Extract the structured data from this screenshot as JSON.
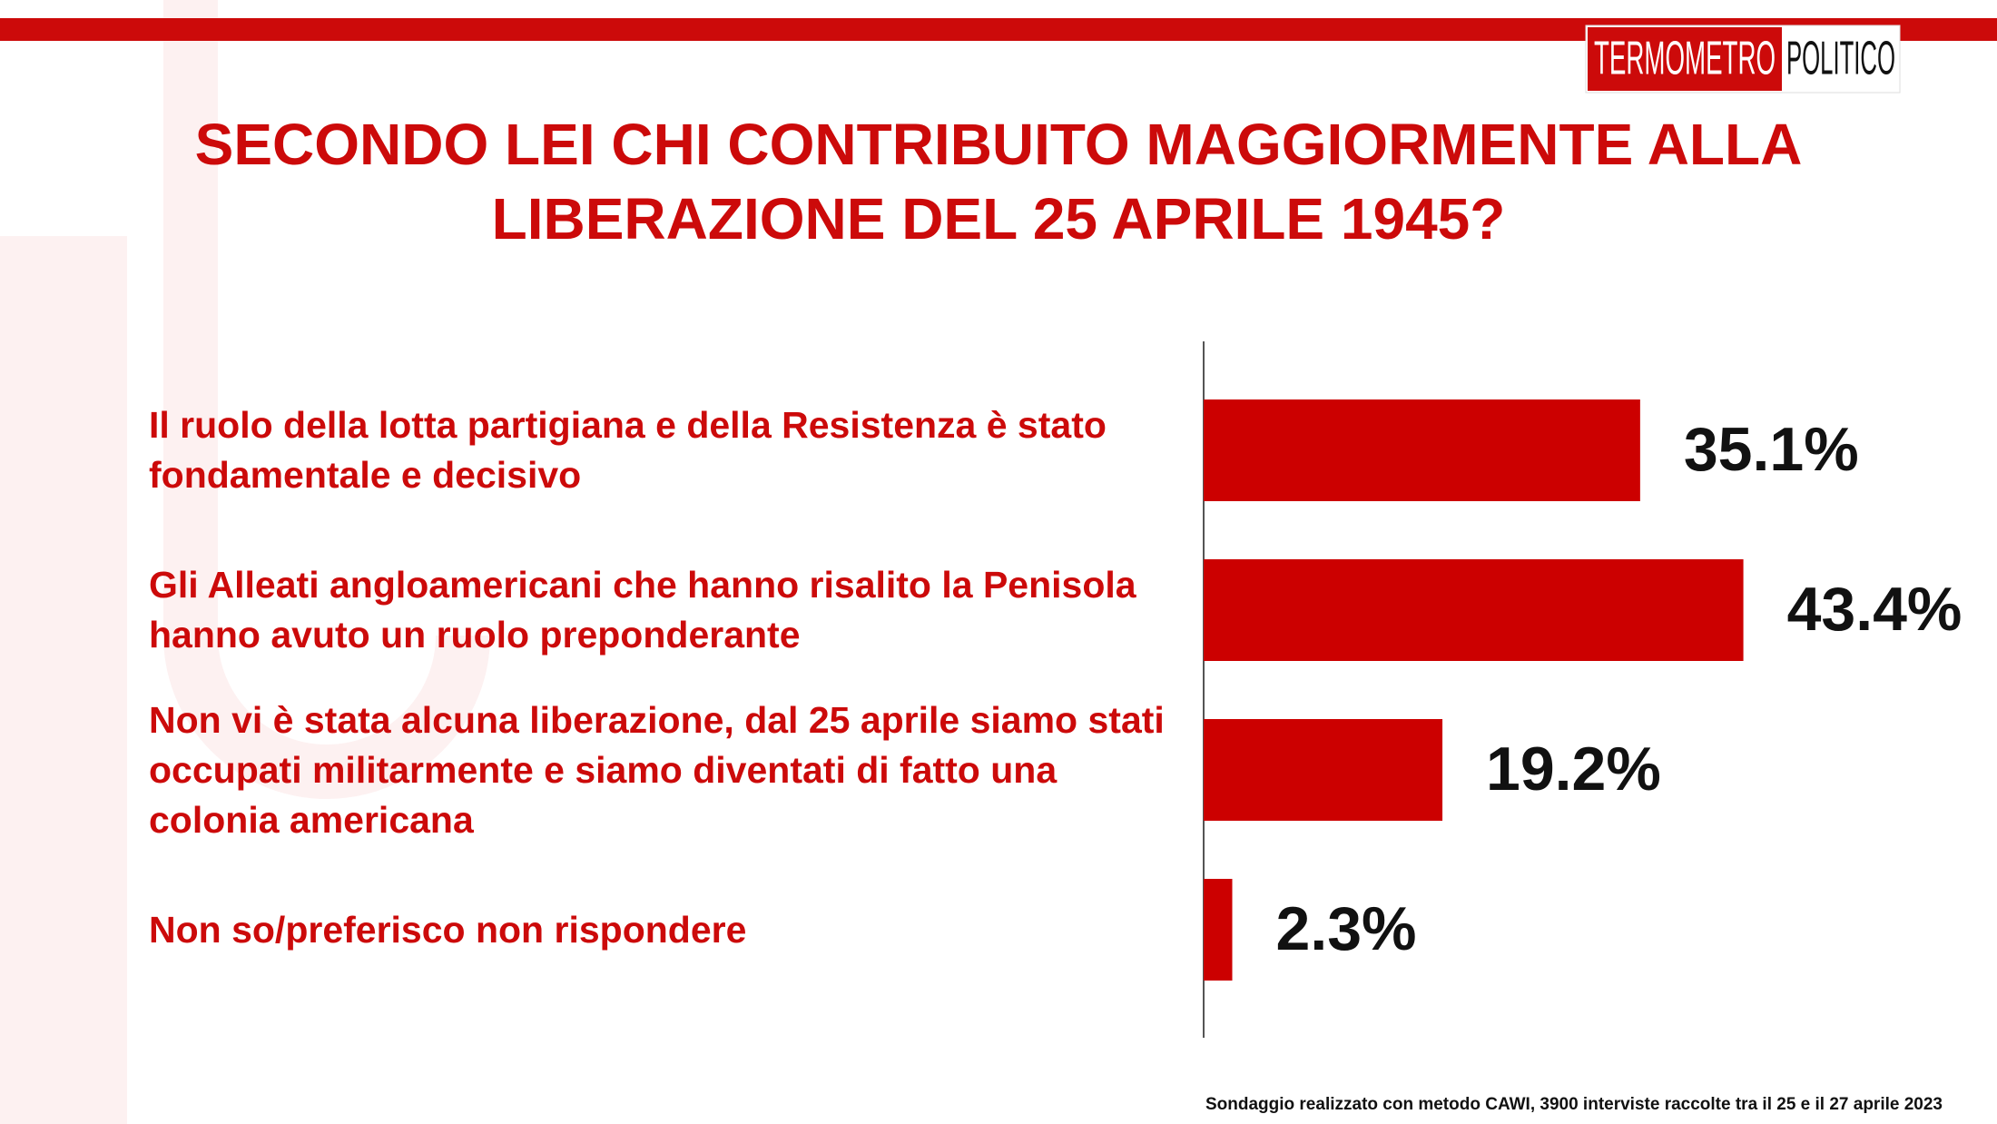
{
  "chart_data": {
    "type": "bar",
    "orientation": "horizontal",
    "title": "SECONDO LEI CHI CONTRIBUITO MAGGIORMENTE ALLA LIBERAZIONE DEL 25 APRILE 1945?",
    "logo": [
      "TERMOMETRO",
      "POLITICO"
    ],
    "categories": [
      "Il ruolo della lotta partigiana e della Resistenza è stato fondamentale e decisivo",
      "Gli Alleati angloamericani che hanno risalito la Penisola hanno avuto un ruolo preponderante",
      "Non vi è stata alcuna liberazione, dal 25 aprile siamo stati occupati militarmente e siamo diventati di fatto una colonia americana",
      "Non so/preferisco non rispondere"
    ],
    "values": [
      35.1,
      43.4,
      19.2,
      2.3
    ],
    "value_labels": [
      "35.1%",
      "43.4%",
      "19.2%",
      "2.3%"
    ],
    "color": "#cc0000",
    "footnote": "Sondaggio realizzato con metodo CAWI, 3900 interviste raccolte tra il 25 e il 27 aprile 2023"
  }
}
